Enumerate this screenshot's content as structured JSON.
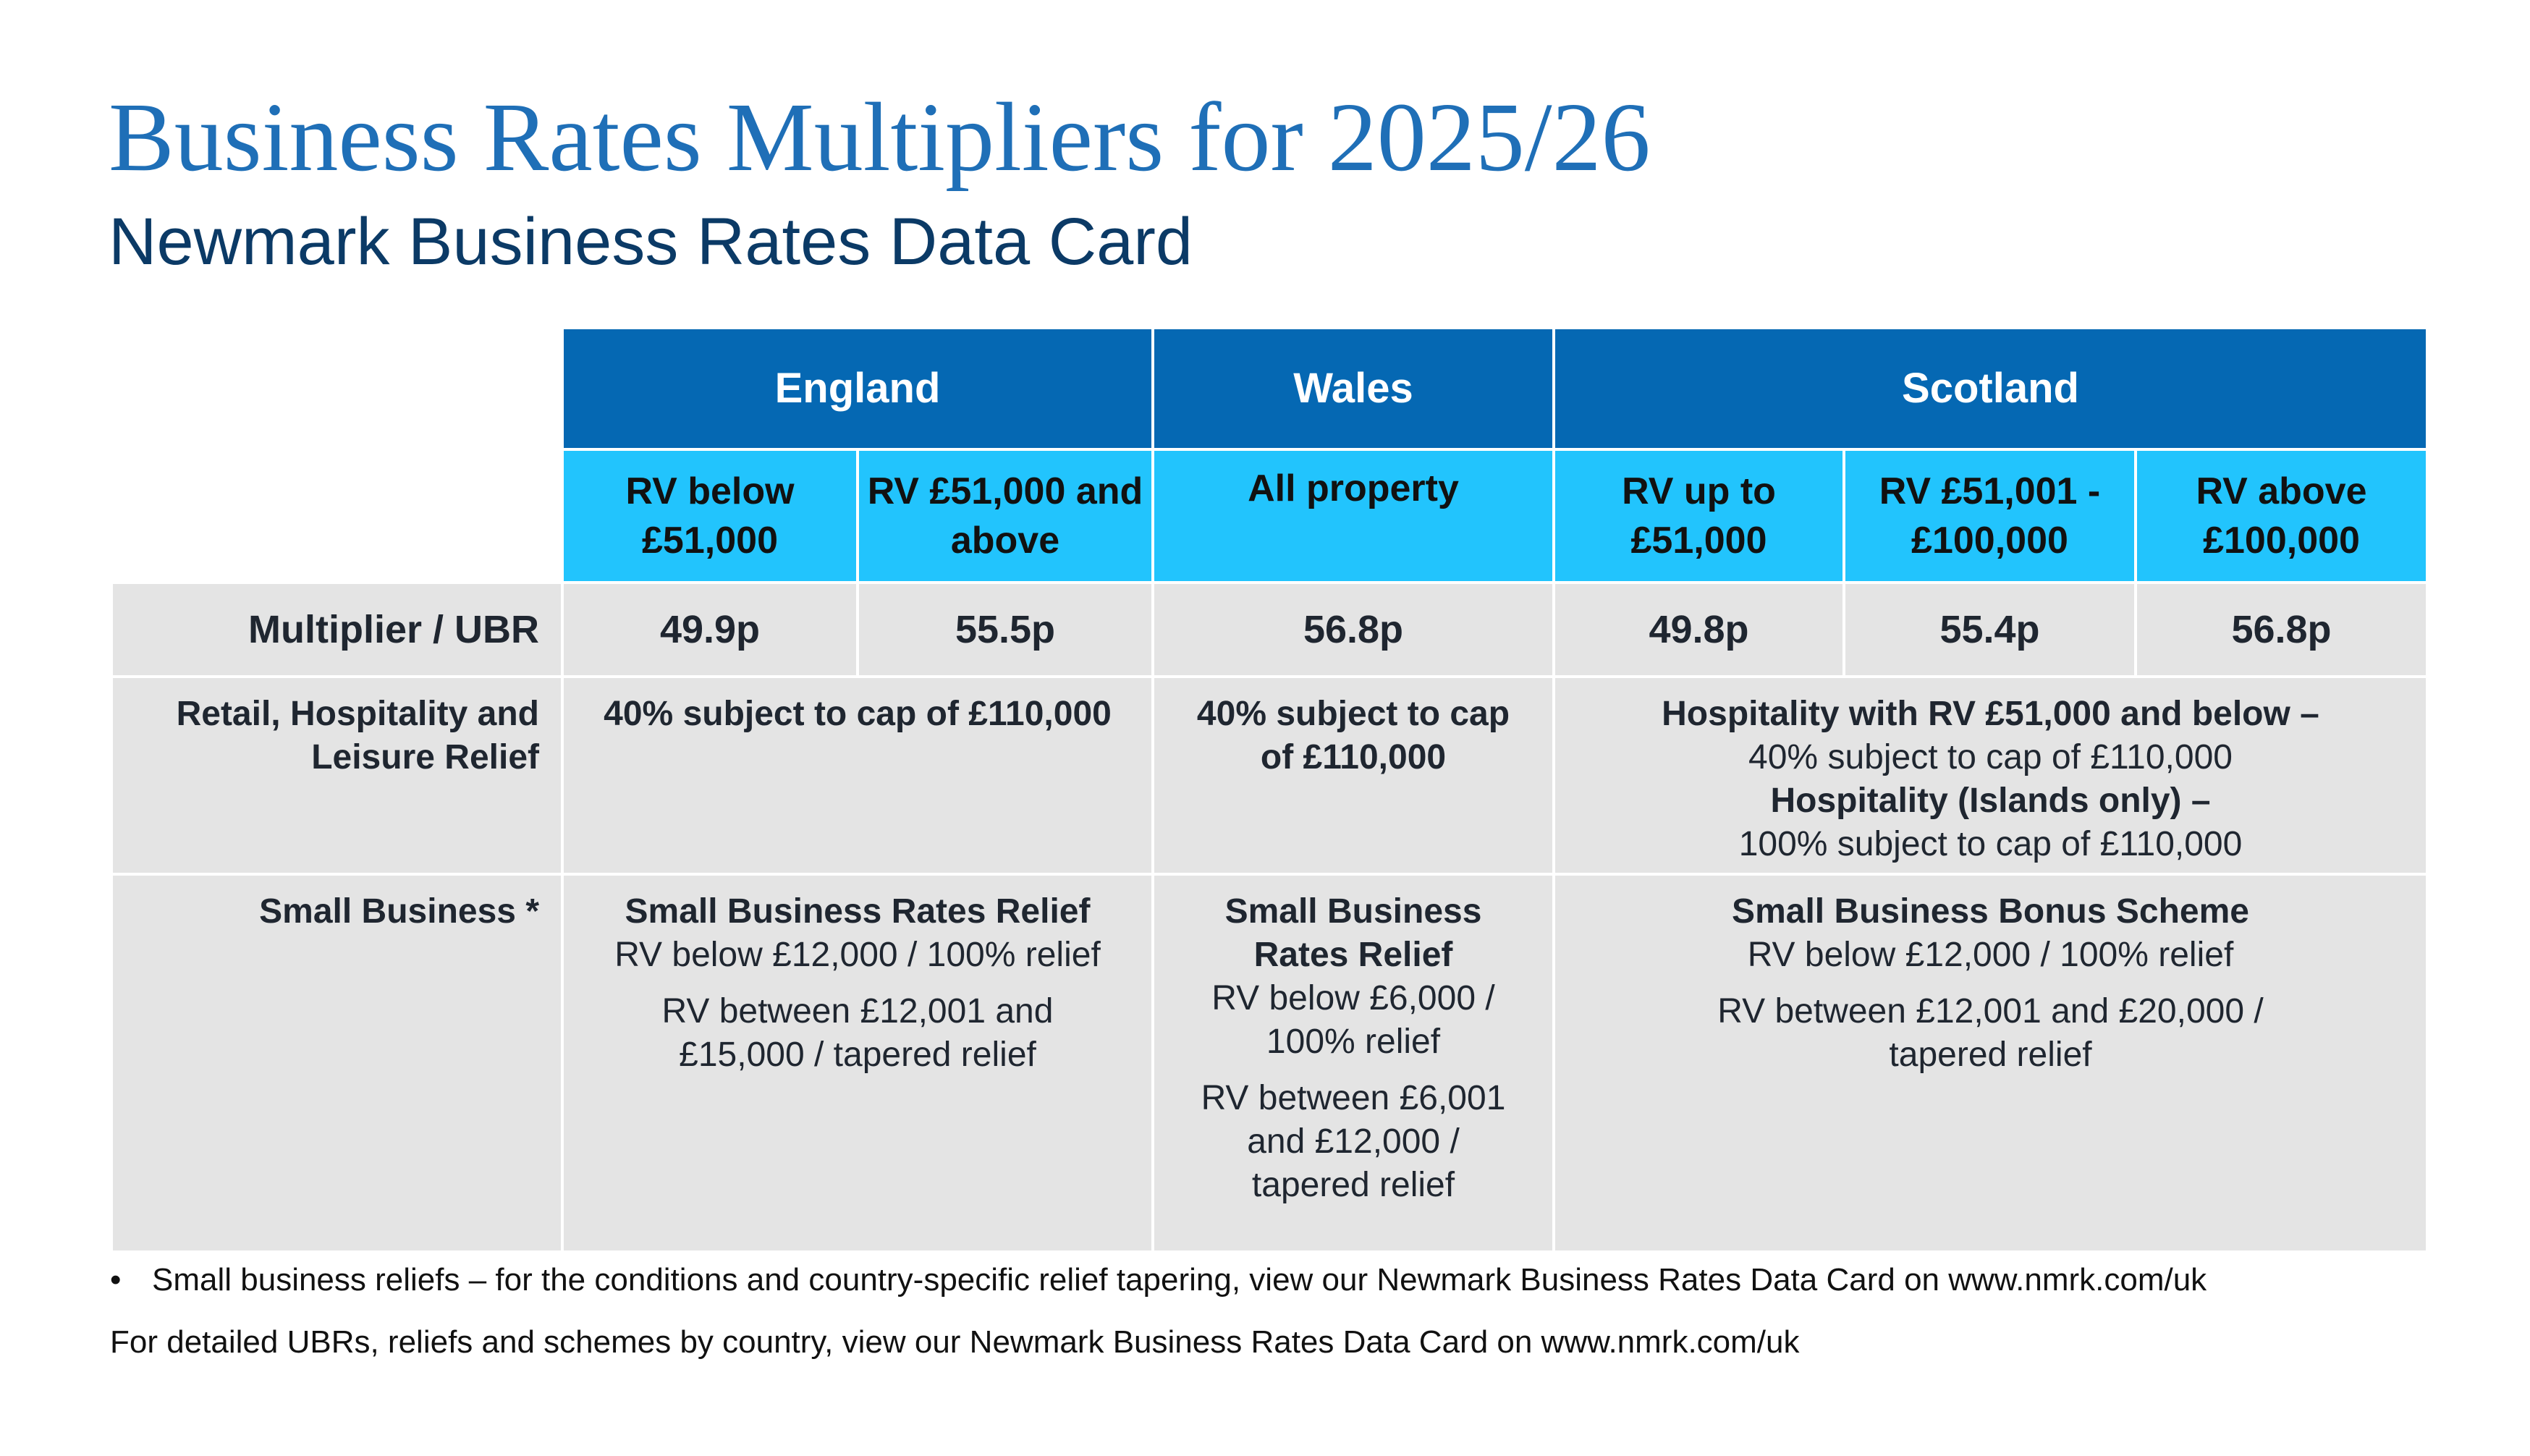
{
  "header": {
    "title": "Business Rates Multipliers for 2025/26",
    "subtitle": "Newmark Business Rates Data Card"
  },
  "table": {
    "countries": [
      "England",
      "Wales",
      "Scotland"
    ],
    "bands": [
      "RV below £51,000",
      "RV £51,000 and above",
      "All property",
      "RV up to £51,000",
      "RV £51,001 - £100,000",
      "RV above £100,000"
    ],
    "multiplier": {
      "label": "Multiplier / UBR",
      "values": [
        "49.9p",
        "55.5p",
        "56.8p",
        "49.8p",
        "55.4p",
        "56.8p"
      ]
    },
    "retail": {
      "label": "Retail, Hospitality and Leisure Relief",
      "england": "40% subject to cap of £110,000",
      "wales": "40% subject to cap of £110,000",
      "scotland": [
        "Hospitality with RV £51,000 and below –",
        "40% subject to cap of £110,000",
        "Hospitality (Islands only) –",
        "100% subject to cap of £110,000"
      ]
    },
    "small": {
      "label": "Small Business *",
      "england": {
        "title": "Small Business Rates Relief",
        "line1": "RV below £12,000 / 100% relief",
        "line2": "RV between £12,001 and £15,000 / tapered relief"
      },
      "wales": {
        "title": "Small Business Rates Relief",
        "line1": "RV below £6,000 / 100% relief",
        "line2": "RV between £6,001 and £12,000 / tapered relief"
      },
      "scotland": {
        "title": "Small Business Bonus Scheme",
        "line1": "RV below £12,000 / 100% relief",
        "line2": "RV between £12,001 and £20,000 / tapered relief"
      }
    }
  },
  "footer": {
    "bullet": "•",
    "note": "Small business reliefs – for the conditions and country-specific relief tapering, view our Newmark Business Rates Data Card on www.nmrk.com/uk",
    "detail": "For detailed UBRs, reliefs and schemes by country, view our Newmark Business Rates Data Card on www.nmrk.com/uk"
  }
}
